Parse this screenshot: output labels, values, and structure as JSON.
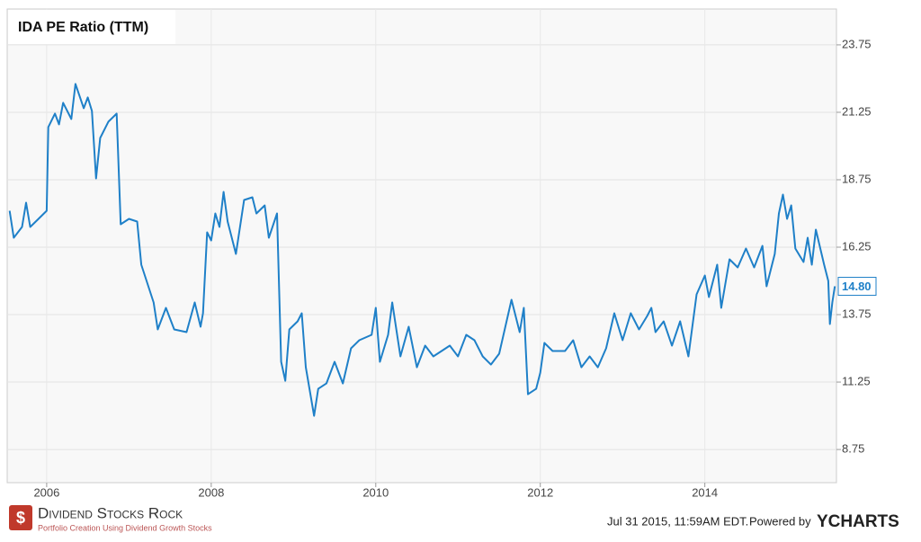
{
  "chart_data": {
    "type": "line",
    "title": "IDA PE Ratio (TTM)",
    "color": "#1f80c8",
    "grid": true,
    "xlim": [
      2005.52,
      2015.6
    ],
    "xticks": [
      2006,
      2008,
      2010,
      2012,
      2014
    ],
    "ylim": [
      7.52,
      25.08
    ],
    "yticks": [
      8.75,
      11.25,
      13.75,
      16.25,
      18.75,
      21.25,
      23.75
    ],
    "x": [
      2005.55,
      2005.6,
      2005.7,
      2005.75,
      2005.8,
      2005.9,
      2006.0,
      2006.02,
      2006.1,
      2006.15,
      2006.2,
      2006.3,
      2006.35,
      2006.45,
      2006.5,
      2006.55,
      2006.6,
      2006.65,
      2006.75,
      2006.85,
      2006.9,
      2007.0,
      2007.1,
      2007.15,
      2007.3,
      2007.35,
      2007.45,
      2007.55,
      2007.7,
      2007.8,
      2007.87,
      2007.9,
      2007.95,
      2008.0,
      2008.05,
      2008.1,
      2008.15,
      2008.2,
      2008.3,
      2008.4,
      2008.5,
      2008.55,
      2008.65,
      2008.7,
      2008.8,
      2008.85,
      2008.9,
      2008.95,
      2009.05,
      2009.1,
      2009.15,
      2009.25,
      2009.3,
      2009.4,
      2009.5,
      2009.6,
      2009.7,
      2009.8,
      2009.95,
      2010.0,
      2010.05,
      2010.15,
      2010.2,
      2010.3,
      2010.4,
      2010.5,
      2010.6,
      2010.7,
      2010.8,
      2010.9,
      2011.0,
      2011.1,
      2011.2,
      2011.3,
      2011.4,
      2011.5,
      2011.65,
      2011.75,
      2011.8,
      2011.85,
      2011.95,
      2012.0,
      2012.05,
      2012.15,
      2012.3,
      2012.4,
      2012.5,
      2012.6,
      2012.7,
      2012.8,
      2012.9,
      2013.0,
      2013.1,
      2013.2,
      2013.3,
      2013.35,
      2013.4,
      2013.5,
      2013.6,
      2013.7,
      2013.8,
      2013.9,
      2014.0,
      2014.05,
      2014.15,
      2014.2,
      2014.3,
      2014.4,
      2014.5,
      2014.6,
      2014.7,
      2014.75,
      2014.85,
      2014.9,
      2014.95,
      2015.0,
      2015.05,
      2015.1,
      2015.2,
      2015.25,
      2015.3,
      2015.35,
      2015.45,
      2015.5,
      2015.52,
      2015.55,
      2015.58
    ],
    "values": [
      17.6,
      16.6,
      17.0,
      17.9,
      17.0,
      17.3,
      17.6,
      20.7,
      21.2,
      20.8,
      21.6,
      21.0,
      22.3,
      21.4,
      21.8,
      21.3,
      18.8,
      20.3,
      20.9,
      21.2,
      17.1,
      17.3,
      17.2,
      15.6,
      14.2,
      13.2,
      14.0,
      13.2,
      13.1,
      14.2,
      13.3,
      13.8,
      16.8,
      16.5,
      17.5,
      17.0,
      18.3,
      17.2,
      16.0,
      18.0,
      18.1,
      17.5,
      17.8,
      16.6,
      17.5,
      12.0,
      11.3,
      13.2,
      13.5,
      13.8,
      11.8,
      10.0,
      11.0,
      11.2,
      12.0,
      11.2,
      12.5,
      12.8,
      13.0,
      14.0,
      12.0,
      13.0,
      14.2,
      12.2,
      13.3,
      11.8,
      12.6,
      12.2,
      12.4,
      12.6,
      12.2,
      13.0,
      12.8,
      12.2,
      11.9,
      12.3,
      14.3,
      13.1,
      14.0,
      10.8,
      11.0,
      11.6,
      12.7,
      12.4,
      12.4,
      12.8,
      11.8,
      12.2,
      11.8,
      12.5,
      13.8,
      12.8,
      13.8,
      13.2,
      13.7,
      14.0,
      13.1,
      13.5,
      12.6,
      13.5,
      12.2,
      14.5,
      15.2,
      14.4,
      15.6,
      14.0,
      15.8,
      15.5,
      16.2,
      15.5,
      16.3,
      14.8,
      16.0,
      17.5,
      18.2,
      17.3,
      17.8,
      16.2,
      15.7,
      16.6,
      15.6,
      16.9,
      15.6,
      15.0,
      13.4,
      14.2,
      14.8
    ],
    "last_label": {
      "value": 14.8,
      "label": "14.80"
    }
  },
  "footer": {
    "brand": "Dividend Stocks Rock",
    "tagline": "Portfolio Creation Using Dividend Growth Stocks",
    "timestamp": "Jul 31 2015, 11:59AM EDT.",
    "powered": "Powered by",
    "provider": "YCHARTS"
  }
}
